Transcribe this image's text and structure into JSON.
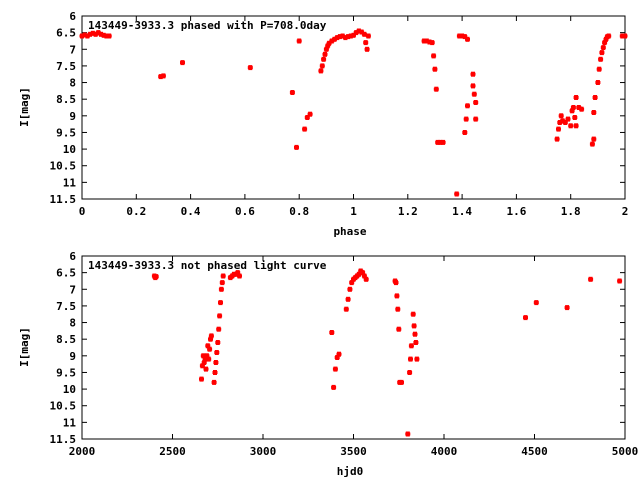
{
  "chart_data": [
    {
      "type": "scatter",
      "title": "143449-3933.3 phased with P=708.0day",
      "xlabel": "phase",
      "ylabel": "I[mag]",
      "xlim": [
        0,
        2
      ],
      "ylim": [
        11.5,
        6
      ],
      "y_inverted": true,
      "xticks": [
        "0",
        "0.2",
        "0.4",
        "0.6",
        "0.8",
        "1",
        "1.2",
        "1.4",
        "1.6",
        "1.8",
        "2"
      ],
      "yticks": [
        "6",
        "6.5",
        "7",
        "7.5",
        "8",
        "8.5",
        "9",
        "9.5",
        "10",
        "10.5",
        "11",
        "11.5"
      ],
      "grid": false,
      "color": "#ff0000",
      "points": [
        [
          0.0,
          6.6
        ],
        [
          0.01,
          6.57
        ],
        [
          0.02,
          6.6
        ],
        [
          0.03,
          6.55
        ],
        [
          0.04,
          6.52
        ],
        [
          0.05,
          6.55
        ],
        [
          0.06,
          6.5
        ],
        [
          0.07,
          6.55
        ],
        [
          0.08,
          6.58
        ],
        [
          0.09,
          6.6
        ],
        [
          0.1,
          6.6
        ],
        [
          0.29,
          7.82
        ],
        [
          0.3,
          7.8
        ],
        [
          0.37,
          7.4
        ],
        [
          0.62,
          7.55
        ],
        [
          0.775,
          8.3
        ],
        [
          0.79,
          9.95
        ],
        [
          0.8,
          6.75
        ],
        [
          0.82,
          9.4
        ],
        [
          0.83,
          9.05
        ],
        [
          0.84,
          8.95
        ],
        [
          0.88,
          7.65
        ],
        [
          0.885,
          7.5
        ],
        [
          0.89,
          7.3
        ],
        [
          0.895,
          7.15
        ],
        [
          0.9,
          7.0
        ],
        [
          0.905,
          6.9
        ],
        [
          0.91,
          6.82
        ],
        [
          0.92,
          6.75
        ],
        [
          0.93,
          6.7
        ],
        [
          0.94,
          6.65
        ],
        [
          0.95,
          6.62
        ],
        [
          0.96,
          6.6
        ],
        [
          0.97,
          6.65
        ],
        [
          0.98,
          6.62
        ],
        [
          0.99,
          6.6
        ],
        [
          1.0,
          6.58
        ],
        [
          1.01,
          6.5
        ],
        [
          1.02,
          6.45
        ],
        [
          1.03,
          6.48
        ],
        [
          1.04,
          6.55
        ],
        [
          1.045,
          6.8
        ],
        [
          1.05,
          7.0
        ],
        [
          1.055,
          6.6
        ],
        [
          1.26,
          6.75
        ],
        [
          1.27,
          6.75
        ],
        [
          1.28,
          6.78
        ],
        [
          1.29,
          6.8
        ],
        [
          1.295,
          7.2
        ],
        [
          1.3,
          7.6
        ],
        [
          1.305,
          8.2
        ],
        [
          1.31,
          9.8
        ],
        [
          1.32,
          9.8
        ],
        [
          1.33,
          9.8
        ],
        [
          1.38,
          11.35
        ],
        [
          1.39,
          6.6
        ],
        [
          1.4,
          6.6
        ],
        [
          1.41,
          6.62
        ],
        [
          1.41,
          9.5
        ],
        [
          1.415,
          9.1
        ],
        [
          1.42,
          8.7
        ],
        [
          1.42,
          6.7
        ],
        [
          1.44,
          7.75
        ],
        [
          1.44,
          8.1
        ],
        [
          1.445,
          8.35
        ],
        [
          1.45,
          8.6
        ],
        [
          1.45,
          9.1
        ],
        [
          1.75,
          9.7
        ],
        [
          1.755,
          9.4
        ],
        [
          1.76,
          9.2
        ],
        [
          1.765,
          9.0
        ],
        [
          1.77,
          9.15
        ],
        [
          1.78,
          9.2
        ],
        [
          1.79,
          9.1
        ],
        [
          1.8,
          9.3
        ],
        [
          1.805,
          8.85
        ],
        [
          1.81,
          8.75
        ],
        [
          1.815,
          9.05
        ],
        [
          1.82,
          9.3
        ],
        [
          1.82,
          8.45
        ],
        [
          1.83,
          8.75
        ],
        [
          1.84,
          8.8
        ],
        [
          1.88,
          9.85
        ],
        [
          1.885,
          9.7
        ],
        [
          1.885,
          8.9
        ],
        [
          1.89,
          8.45
        ],
        [
          1.9,
          8.0
        ],
        [
          1.905,
          7.6
        ],
        [
          1.91,
          7.3
        ],
        [
          1.915,
          7.1
        ],
        [
          1.92,
          6.95
        ],
        [
          1.925,
          6.8
        ],
        [
          1.93,
          6.7
        ],
        [
          1.935,
          6.62
        ],
        [
          1.94,
          6.6
        ],
        [
          1.99,
          6.6
        ],
        [
          2.0,
          6.6
        ]
      ]
    },
    {
      "type": "scatter",
      "title": "143449-3933.3 not phased light curve",
      "xlabel": "hjd0",
      "ylabel": "I[mag]",
      "xlim": [
        2000,
        5000
      ],
      "ylim": [
        11.5,
        6
      ],
      "y_inverted": true,
      "xticks": [
        "2000",
        "2500",
        "3000",
        "3500",
        "4000",
        "4500",
        "5000"
      ],
      "yticks": [
        "6",
        "6.5",
        "7",
        "7.5",
        "8",
        "8.5",
        "9",
        "9.5",
        "10",
        "10.5",
        "11",
        "11.5"
      ],
      "grid": false,
      "color": "#ff0000",
      "points": [
        [
          2400,
          6.6
        ],
        [
          2405,
          6.65
        ],
        [
          2410,
          6.62
        ],
        [
          2660,
          9.7
        ],
        [
          2665,
          9.3
        ],
        [
          2670,
          9.0
        ],
        [
          2675,
          9.2
        ],
        [
          2680,
          9.1
        ],
        [
          2685,
          9.4
        ],
        [
          2690,
          9.0
        ],
        [
          2695,
          8.7
        ],
        [
          2700,
          9.1
        ],
        [
          2705,
          8.8
        ],
        [
          2710,
          8.5
        ],
        [
          2715,
          8.4
        ],
        [
          2730,
          9.8
        ],
        [
          2735,
          9.5
        ],
        [
          2740,
          9.2
        ],
        [
          2745,
          8.9
        ],
        [
          2750,
          8.6
        ],
        [
          2755,
          8.2
        ],
        [
          2760,
          7.8
        ],
        [
          2765,
          7.4
        ],
        [
          2770,
          7.0
        ],
        [
          2775,
          6.8
        ],
        [
          2780,
          6.6
        ],
        [
          2820,
          6.65
        ],
        [
          2830,
          6.6
        ],
        [
          2840,
          6.55
        ],
        [
          2850,
          6.55
        ],
        [
          2860,
          6.5
        ],
        [
          2870,
          6.6
        ],
        [
          3380,
          8.3
        ],
        [
          3390,
          9.95
        ],
        [
          3400,
          9.4
        ],
        [
          3410,
          9.05
        ],
        [
          3420,
          8.95
        ],
        [
          3460,
          7.6
        ],
        [
          3470,
          7.3
        ],
        [
          3480,
          7.0
        ],
        [
          3490,
          6.8
        ],
        [
          3500,
          6.7
        ],
        [
          3510,
          6.65
        ],
        [
          3520,
          6.6
        ],
        [
          3530,
          6.55
        ],
        [
          3540,
          6.45
        ],
        [
          3550,
          6.5
        ],
        [
          3560,
          6.6
        ],
        [
          3570,
          6.7
        ],
        [
          3730,
          6.75
        ],
        [
          3735,
          6.8
        ],
        [
          3740,
          7.2
        ],
        [
          3745,
          7.6
        ],
        [
          3750,
          8.2
        ],
        [
          3755,
          9.8
        ],
        [
          3765,
          9.8
        ],
        [
          3800,
          11.35
        ],
        [
          3810,
          9.5
        ],
        [
          3815,
          9.1
        ],
        [
          3820,
          8.7
        ],
        [
          3830,
          7.75
        ],
        [
          3835,
          8.1
        ],
        [
          3840,
          8.35
        ],
        [
          3845,
          8.6
        ],
        [
          3850,
          9.1
        ],
        [
          4450,
          7.85
        ],
        [
          4510,
          7.4
        ],
        [
          4680,
          7.55
        ],
        [
          4810,
          6.7
        ],
        [
          4970,
          6.75
        ]
      ]
    }
  ]
}
